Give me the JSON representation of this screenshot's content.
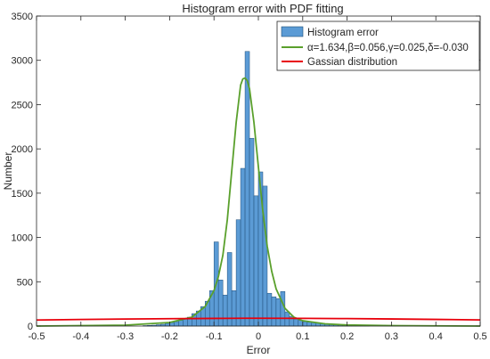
{
  "chart_data": {
    "type": "bar",
    "title": "Histogram error with PDF fitting",
    "xlabel": "Error",
    "ylabel": "Number",
    "xlim": [
      -0.5,
      0.5
    ],
    "ylim": [
      0,
      3500
    ],
    "xticks": [
      "-0.5",
      "-0.4",
      "-0.3",
      "-0.2",
      "-0.1",
      "0",
      "0.1",
      "0.2",
      "0.3",
      "0.4",
      "0.5"
    ],
    "yticks": [
      "0",
      "500",
      "1000",
      "1500",
      "2000",
      "2500",
      "3000",
      "3500"
    ],
    "grid": false,
    "legend_position": "top-right",
    "bin_width": 0.01,
    "histogram": {
      "name": "Histogram error",
      "color": "#5b9bd5",
      "edge_color": "#1f4e79",
      "bins": [
        [
          -0.26,
          5
        ],
        [
          -0.25,
          8
        ],
        [
          -0.24,
          10
        ],
        [
          -0.23,
          15
        ],
        [
          -0.22,
          20
        ],
        [
          -0.21,
          30
        ],
        [
          -0.2,
          40
        ],
        [
          -0.19,
          50
        ],
        [
          -0.18,
          65
        ],
        [
          -0.17,
          80
        ],
        [
          -0.16,
          100
        ],
        [
          -0.15,
          140
        ],
        [
          -0.14,
          170
        ],
        [
          -0.13,
          220
        ],
        [
          -0.12,
          280
        ],
        [
          -0.11,
          400
        ],
        [
          -0.1,
          950
        ],
        [
          -0.09,
          520
        ],
        [
          -0.08,
          350
        ],
        [
          -0.07,
          830
        ],
        [
          -0.06,
          400
        ],
        [
          -0.05,
          1200
        ],
        [
          -0.04,
          1780
        ],
        [
          -0.03,
          3100
        ],
        [
          -0.02,
          2120
        ],
        [
          -0.01,
          1470
        ],
        [
          0.0,
          1740
        ],
        [
          0.01,
          1580
        ],
        [
          0.02,
          370
        ],
        [
          0.03,
          330
        ],
        [
          0.04,
          310
        ],
        [
          0.05,
          390
        ],
        [
          0.06,
          160
        ],
        [
          0.07,
          110
        ],
        [
          0.08,
          80
        ],
        [
          0.09,
          65
        ],
        [
          0.1,
          50
        ],
        [
          0.11,
          45
        ],
        [
          0.12,
          40
        ],
        [
          0.13,
          35
        ],
        [
          0.14,
          30
        ],
        [
          0.15,
          25
        ],
        [
          0.16,
          22
        ],
        [
          0.17,
          20
        ],
        [
          0.18,
          15
        ],
        [
          0.19,
          12
        ],
        [
          0.2,
          10
        ],
        [
          0.21,
          8
        ],
        [
          0.22,
          5
        ],
        [
          0.23,
          4
        ],
        [
          0.24,
          3
        ]
      ]
    },
    "series": [
      {
        "name": "α=1.634,β=0.056,γ=0.025,δ=-0.030",
        "type": "line",
        "color": "#5aa02c",
        "x": [
          -0.5,
          -0.3,
          -0.2,
          -0.15,
          -0.12,
          -0.1,
          -0.09,
          -0.08,
          -0.07,
          -0.06,
          -0.05,
          -0.04,
          -0.035,
          -0.03,
          -0.025,
          -0.02,
          -0.01,
          0.0,
          0.01,
          0.02,
          0.03,
          0.04,
          0.06,
          0.08,
          0.1,
          0.15,
          0.2,
          0.3,
          0.5
        ],
        "y": [
          0,
          10,
          40,
          100,
          220,
          400,
          560,
          800,
          1200,
          1750,
          2300,
          2720,
          2790,
          2800,
          2770,
          2680,
          2300,
          1800,
          1300,
          900,
          620,
          420,
          200,
          100,
          60,
          25,
          12,
          5,
          0
        ]
      },
      {
        "name": "Gassian distribution",
        "type": "line",
        "color": "#e8000b",
        "x": [
          -0.5,
          -0.4,
          -0.3,
          -0.2,
          -0.1,
          -0.03,
          0.0,
          0.1,
          0.2,
          0.3,
          0.4,
          0.5
        ],
        "y": [
          68,
          74,
          79,
          83,
          86,
          88,
          88,
          87,
          84,
          80,
          75,
          69
        ]
      }
    ]
  }
}
